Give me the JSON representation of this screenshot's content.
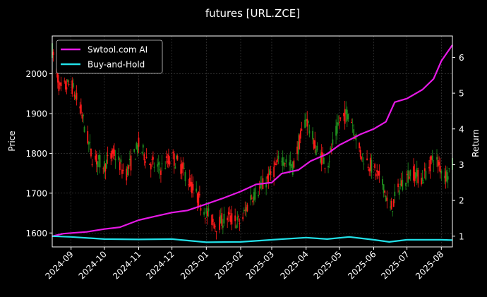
{
  "chart_data": {
    "type": "candlestick-line",
    "title": "futures [URL.ZCE]",
    "ylabel_left": "Price",
    "ylabel_right": "Return",
    "ylim_left": [
      1565,
      2095
    ],
    "ylim_right": [
      0.7,
      6.6
    ],
    "left_ticks": [
      1600,
      1700,
      1800,
      1900,
      2000
    ],
    "right_ticks": [
      1,
      2,
      3,
      4,
      5,
      6
    ],
    "xlim": [
      "2024-08-15",
      "2025-08-11"
    ],
    "x_ticks": [
      "2024-09",
      "2024-10",
      "2024-11",
      "2024-12",
      "2025-01",
      "2025-02",
      "2025-03",
      "2025-04",
      "2025-05",
      "2025-06",
      "2025-07",
      "2025-08"
    ],
    "grid": true,
    "legend_position": "top-left",
    "colors": {
      "up": "#1f8f1f",
      "down": "#ff1a1a",
      "strategy": "#e619e6",
      "benchmark": "#22e0e8",
      "grid": "#444444"
    },
    "price_path": [
      [
        "2024-08-15",
        2060
      ],
      [
        "2024-08-22",
        1960
      ],
      [
        "2024-09-01",
        1975
      ],
      [
        "2024-09-10",
        1905
      ],
      [
        "2024-09-20",
        1790
      ],
      [
        "2024-10-01",
        1770
      ],
      [
        "2024-10-10",
        1800
      ],
      [
        "2024-10-20",
        1745
      ],
      [
        "2024-11-01",
        1820
      ],
      [
        "2024-11-10",
        1780
      ],
      [
        "2024-11-20",
        1760
      ],
      [
        "2024-12-01",
        1790
      ],
      [
        "2024-12-10",
        1765
      ],
      [
        "2024-12-20",
        1710
      ],
      [
        "2025-01-01",
        1650
      ],
      [
        "2025-01-10",
        1620
      ],
      [
        "2025-01-20",
        1640
      ],
      [
        "2025-02-01",
        1625
      ],
      [
        "2025-02-10",
        1690
      ],
      [
        "2025-02-20",
        1715
      ],
      [
        "2025-03-01",
        1750
      ],
      [
        "2025-03-10",
        1790
      ],
      [
        "2025-03-20",
        1765
      ],
      [
        "2025-04-01",
        1890
      ],
      [
        "2025-04-10",
        1810
      ],
      [
        "2025-04-20",
        1770
      ],
      [
        "2025-05-01",
        1880
      ],
      [
        "2025-05-10",
        1905
      ],
      [
        "2025-05-20",
        1800
      ],
      [
        "2025-06-01",
        1760
      ],
      [
        "2025-06-10",
        1720
      ],
      [
        "2025-06-15",
        1650
      ],
      [
        "2025-06-25",
        1720
      ],
      [
        "2025-07-05",
        1755
      ],
      [
        "2025-07-15",
        1735
      ],
      [
        "2025-07-25",
        1790
      ],
      [
        "2025-08-05",
        1745
      ],
      [
        "2025-08-11",
        1770
      ]
    ],
    "series": [
      {
        "name": "Swtool.com AI",
        "points": [
          [
            "2024-08-15",
            1.0
          ],
          [
            "2024-08-25",
            1.07
          ],
          [
            "2024-09-15",
            1.12
          ],
          [
            "2024-10-01",
            1.2
          ],
          [
            "2024-10-15",
            1.25
          ],
          [
            "2024-11-01",
            1.45
          ],
          [
            "2024-11-15",
            1.55
          ],
          [
            "2024-12-01",
            1.66
          ],
          [
            "2024-12-15",
            1.72
          ],
          [
            "2025-01-01",
            1.9
          ],
          [
            "2025-01-15",
            2.05
          ],
          [
            "2025-02-01",
            2.25
          ],
          [
            "2025-02-15",
            2.45
          ],
          [
            "2025-03-01",
            2.5
          ],
          [
            "2025-03-10",
            2.75
          ],
          [
            "2025-03-25",
            2.85
          ],
          [
            "2025-04-05",
            3.1
          ],
          [
            "2025-04-20",
            3.3
          ],
          [
            "2025-05-01",
            3.55
          ],
          [
            "2025-05-20",
            3.85
          ],
          [
            "2025-06-01",
            4.0
          ],
          [
            "2025-06-12",
            4.2
          ],
          [
            "2025-06-20",
            4.75
          ],
          [
            "2025-07-01",
            4.85
          ],
          [
            "2025-07-15",
            5.1
          ],
          [
            "2025-07-25",
            5.4
          ],
          [
            "2025-08-01",
            5.9
          ],
          [
            "2025-08-11",
            6.35
          ]
        ]
      },
      {
        "name": "Buy-and-Hold",
        "points": [
          [
            "2024-08-15",
            1.0
          ],
          [
            "2024-09-01",
            0.98
          ],
          [
            "2024-10-01",
            0.92
          ],
          [
            "2024-11-01",
            0.91
          ],
          [
            "2024-12-01",
            0.92
          ],
          [
            "2025-01-01",
            0.83
          ],
          [
            "2025-02-01",
            0.84
          ],
          [
            "2025-03-01",
            0.9
          ],
          [
            "2025-04-01",
            0.96
          ],
          [
            "2025-04-20",
            0.92
          ],
          [
            "2025-05-10",
            0.98
          ],
          [
            "2025-06-01",
            0.9
          ],
          [
            "2025-06-15",
            0.84
          ],
          [
            "2025-07-01",
            0.9
          ],
          [
            "2025-08-01",
            0.9
          ],
          [
            "2025-08-11",
            0.89
          ]
        ]
      }
    ]
  }
}
